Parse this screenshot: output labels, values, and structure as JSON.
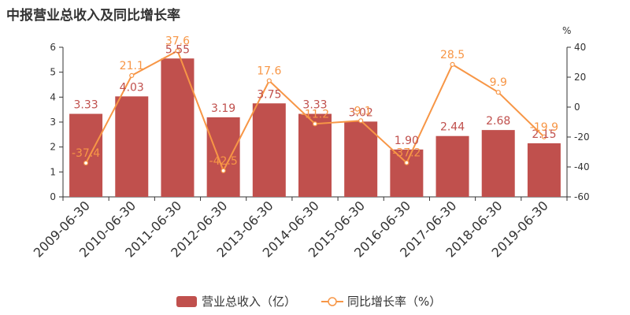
{
  "title": "中报营业总收入及同比增长率",
  "chart_data": {
    "type": "bar",
    "categories": [
      "2009-06-30",
      "2010-06-30",
      "2011-06-30",
      "2012-06-30",
      "2013-06-30",
      "2014-06-30",
      "2015-06-30",
      "2016-06-30",
      "2017-06-30",
      "2018-06-30",
      "2019-06-30"
    ],
    "series": [
      {
        "name": "营业总收入（亿）",
        "type": "bar",
        "axis": "left",
        "values": [
          3.33,
          4.03,
          5.55,
          3.19,
          3.75,
          3.33,
          3.02,
          1.9,
          2.44,
          2.68,
          2.15
        ],
        "labels": [
          "3.33",
          "4.03",
          "5.55",
          "3.19",
          "3.75",
          "3.33",
          "3.02",
          "1.90",
          "2.44",
          "2.68",
          "2.15"
        ],
        "color": "#c0504d"
      },
      {
        "name": "同比增长率（%）",
        "type": "line",
        "axis": "right",
        "values": [
          -37.4,
          21.1,
          37.6,
          -42.5,
          17.6,
          -11.2,
          -9.1,
          -37.2,
          28.5,
          9.9,
          -19.9
        ],
        "labels": [
          "-37.4",
          "21.1",
          "37.6",
          "-42.5",
          "17.6",
          "-11.2",
          "-9.1",
          "-37.2",
          "28.5",
          "9.9",
          "-19.9"
        ],
        "color": "#f79646"
      }
    ],
    "y_left": {
      "ylim": [
        0,
        6
      ],
      "ticks": [
        "0",
        "1",
        "2",
        "3",
        "4",
        "5",
        "6"
      ]
    },
    "y_right": {
      "ylim": [
        -60,
        40
      ],
      "ticks": [
        "-60",
        "-40",
        "-20",
        "0",
        "20",
        "40"
      ],
      "unit": "%"
    },
    "grid": false,
    "legend_position": "bottom-center"
  },
  "colors": {
    "bar": "#c0504d",
    "line": "#f79646",
    "bar_label": "#c0504d",
    "line_label": "#f79646"
  }
}
